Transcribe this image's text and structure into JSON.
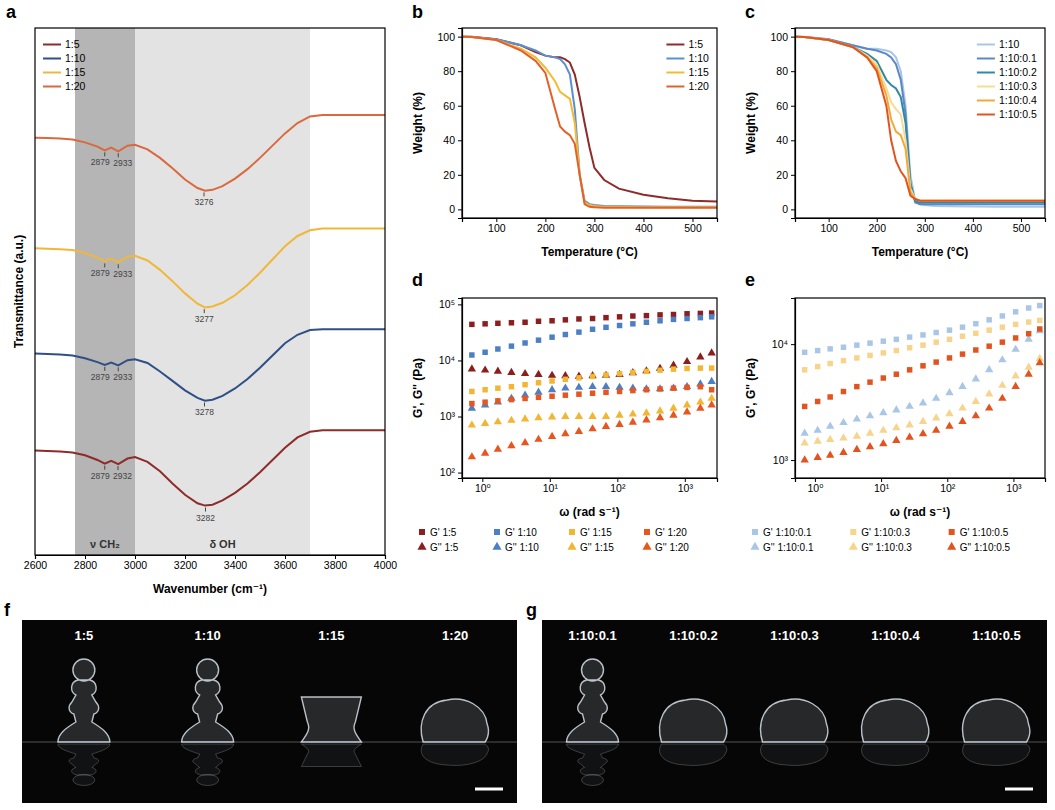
{
  "chart_data": [
    {
      "panel_label": "a",
      "type": "line",
      "x_label": "Wavenumber (cm⁻¹)",
      "y_label": "Transmittance (a.u.)",
      "x": [
        2600,
        2650,
        2700,
        2750,
        2800,
        2850,
        2879,
        2905,
        2933,
        2970,
        3000,
        3050,
        3100,
        3150,
        3200,
        3250,
        3280,
        3310,
        3350,
        3400,
        3450,
        3500,
        3550,
        3600,
        3650,
        3700,
        3750,
        3800,
        3900,
        4000
      ],
      "xlim": [
        2600,
        4000
      ],
      "xticks": [
        2600,
        2800,
        3000,
        3200,
        3400,
        3600,
        3800,
        4000
      ],
      "ylim": [
        -0.6,
        10.6
      ],
      "tick_labels": "x",
      "legend": "upper left",
      "bands": [
        {
          "x0": 2760,
          "x1": 3000,
          "label": "ν CH₂"
        },
        {
          "x0": 3000,
          "x1": 3700,
          "label": "δ OH"
        }
      ],
      "series": [
        {
          "name": "1:5",
          "color": "#8e2b2b",
          "peaks": [
            2879,
            2932,
            3282
          ],
          "values": [
            1.62,
            1.61,
            1.6,
            1.58,
            1.52,
            1.42,
            1.34,
            1.4,
            1.33,
            1.45,
            1.48,
            1.38,
            1.18,
            0.92,
            0.68,
            0.5,
            0.45,
            0.47,
            0.56,
            0.72,
            0.92,
            1.16,
            1.42,
            1.68,
            1.9,
            2.02,
            2.05,
            2.05,
            2.05,
            2.05
          ]
        },
        {
          "name": "1:10",
          "color": "#2f4f86",
          "peaks": [
            2879,
            2933,
            3278
          ],
          "values": [
            3.68,
            3.67,
            3.66,
            3.64,
            3.58,
            3.5,
            3.44,
            3.49,
            3.43,
            3.54,
            3.56,
            3.48,
            3.3,
            3.1,
            2.9,
            2.74,
            2.68,
            2.7,
            2.78,
            2.94,
            3.14,
            3.38,
            3.64,
            3.9,
            4.08,
            4.18,
            4.2,
            4.2,
            4.2,
            4.2
          ]
        },
        {
          "name": "1:15",
          "color": "#f0b73a",
          "peaks": [
            2879,
            2933,
            3277
          ],
          "values": [
            5.92,
            5.91,
            5.9,
            5.88,
            5.82,
            5.72,
            5.64,
            5.7,
            5.62,
            5.74,
            5.76,
            5.66,
            5.46,
            5.22,
            4.96,
            4.74,
            4.66,
            4.68,
            4.76,
            4.92,
            5.14,
            5.4,
            5.68,
            5.96,
            6.18,
            6.3,
            6.34,
            6.34,
            6.34,
            6.34
          ]
        },
        {
          "name": "1:20",
          "color": "#d9693e",
          "peaks": [
            2879,
            2933,
            3276
          ],
          "values": [
            8.27,
            8.26,
            8.25,
            8.23,
            8.17,
            8.08,
            8.0,
            8.06,
            7.98,
            8.1,
            8.12,
            8.02,
            7.84,
            7.62,
            7.38,
            7.2,
            7.14,
            7.16,
            7.24,
            7.4,
            7.6,
            7.84,
            8.1,
            8.36,
            8.58,
            8.72,
            8.75,
            8.75,
            8.75,
            8.75
          ]
        }
      ]
    },
    {
      "panel_label": "b",
      "type": "line",
      "x_label": "Temperature (°C)",
      "y_label": "Weight (%)",
      "x": [
        30,
        50,
        100,
        150,
        180,
        200,
        220,
        230,
        240,
        250,
        260,
        270,
        280,
        290,
        300,
        320,
        350,
        400,
        450,
        500,
        550
      ],
      "xlim": [
        30,
        550
      ],
      "xticks": [
        100,
        200,
        300,
        400,
        500
      ],
      "ylim": [
        -5,
        105
      ],
      "yticks": [
        0,
        20,
        40,
        60,
        80,
        100
      ],
      "legend": "upper right",
      "series": [
        {
          "name": "1:5",
          "color": "#8e2b2b",
          "values": [
            100,
            100,
            98.5,
            95,
            91,
            89,
            88,
            88,
            87,
            85,
            78,
            65,
            50,
            36,
            24,
            17,
            12,
            8.5,
            6.5,
            5,
            4.5
          ]
        },
        {
          "name": "1:10",
          "color": "#5b8fd0",
          "values": [
            100,
            99.8,
            98.5,
            95,
            92,
            89,
            88,
            87,
            84,
            78,
            58,
            20,
            5,
            3,
            2.5,
            2,
            1.8,
            1.6,
            1.5,
            1.5,
            1.5
          ]
        },
        {
          "name": "1:15",
          "color": "#f2bb35",
          "values": [
            100,
            99.8,
            98,
            93,
            88,
            82,
            74,
            68,
            66,
            64,
            50,
            20,
            4,
            2.5,
            2,
            1.5,
            1.3,
            1.2,
            1.2,
            1.2,
            1.2
          ]
        },
        {
          "name": "1:20",
          "color": "#e4602a",
          "values": [
            100,
            99.8,
            98,
            92,
            86,
            79,
            58,
            48,
            45,
            43,
            38,
            20,
            3,
            1.5,
            1.2,
            1.0,
            1.0,
            1.0,
            1.0,
            1.0,
            1.0
          ]
        }
      ]
    },
    {
      "panel_label": "c",
      "type": "line",
      "x_label": "Temperature (°C)",
      "y_label": "Weight (%)",
      "x": [
        30,
        50,
        100,
        150,
        180,
        200,
        220,
        230,
        240,
        250,
        260,
        270,
        280,
        290,
        300,
        320,
        350,
        400,
        450,
        500,
        550
      ],
      "xlim": [
        30,
        550
      ],
      "xticks": [
        100,
        200,
        300,
        400,
        500
      ],
      "ylim": [
        -5,
        105
      ],
      "yticks": [
        0,
        20,
        40,
        60,
        80,
        100
      ],
      "legend": "upper right",
      "series": [
        {
          "name": "1:10",
          "color": "#a9c6e6",
          "values": [
            100,
            99.8,
            98.5,
            95,
            93,
            93,
            92,
            91,
            88,
            80,
            60,
            20,
            5,
            3,
            2.5,
            2,
            1.8,
            1.6,
            1.5,
            1.5,
            1.5
          ]
        },
        {
          "name": "1:10:0.1",
          "color": "#5b88c7",
          "values": [
            100,
            99.8,
            98.5,
            95,
            93,
            92,
            90,
            88,
            84,
            75,
            55,
            15,
            4,
            3,
            3,
            3,
            3,
            3,
            3,
            3,
            3
          ]
        },
        {
          "name": "1:10:0.2",
          "color": "#2f8aa8",
          "values": [
            100,
            99.8,
            98,
            94,
            90,
            86,
            75,
            72,
            70,
            65,
            50,
            15,
            5,
            4,
            4,
            4,
            4,
            4,
            4,
            4,
            4
          ]
        },
        {
          "name": "1:10:0.3",
          "color": "#f6dc93",
          "values": [
            100,
            99.8,
            98,
            94,
            89,
            84,
            70,
            62,
            58,
            55,
            40,
            12,
            6,
            5,
            5,
            5,
            5,
            5,
            5,
            5,
            5
          ]
        },
        {
          "name": "1:10:0.4",
          "color": "#f2a93a",
          "values": [
            100,
            99.8,
            98,
            94,
            88,
            82,
            66,
            52,
            45,
            43,
            35,
            10,
            6,
            5,
            5,
            5,
            5,
            5,
            5,
            5,
            5
          ]
        },
        {
          "name": "1:10:0.5",
          "color": "#e2541f",
          "values": [
            100,
            99.8,
            98,
            94,
            88,
            80,
            60,
            40,
            28,
            22,
            18,
            8,
            6,
            5,
            5,
            5,
            5,
            5,
            5,
            5,
            5
          ]
        }
      ]
    },
    {
      "panel_label": "d",
      "type": "scatter",
      "log": true,
      "x_label": "ω (rad s⁻¹)",
      "y_label": "G', G'' (Pa)",
      "x": [
        0.7,
        1.1,
        1.7,
        2.7,
        4.3,
        6.8,
        10.8,
        17,
        27,
        43,
        68,
        108,
        170,
        270,
        430,
        680,
        1080,
        1700,
        2500
      ],
      "xlim": [
        0.5,
        3000
      ],
      "xticks": [
        {
          "value": 1,
          "label": "10⁰"
        },
        {
          "value": 10,
          "label": "10¹"
        },
        {
          "value": 100,
          "label": "10²"
        },
        {
          "value": 1000,
          "label": "10³"
        }
      ],
      "ylim": [
        80,
        130000
      ],
      "yticks": [
        {
          "value": 100,
          "label": "10²"
        },
        {
          "value": 1000,
          "label": "10³"
        },
        {
          "value": 10000,
          "label": "10⁴"
        },
        {
          "value": 100000,
          "label": "10⁵"
        }
      ],
      "legend": "bottom",
      "series": [
        {
          "name": "G' 1:5",
          "color": "#8b1f1f",
          "marker": "square",
          "values": [
            44000,
            45000,
            46000,
            47000,
            48000,
            50000,
            51000,
            53000,
            55000,
            56000,
            58000,
            60000,
            62000,
            63000,
            65000,
            66000,
            68000,
            69000,
            70000
          ]
        },
        {
          "name": "G'' 1:5",
          "color": "#8b1f1f",
          "marker": "triangle",
          "values": [
            7000,
            6700,
            6400,
            6100,
            5800,
            5600,
            5400,
            5300,
            5200,
            5300,
            5400,
            5600,
            6000,
            6500,
            7200,
            8200,
            9500,
            11500,
            13500
          ]
        },
        {
          "name": "G' 1:10",
          "color": "#4d7fc4",
          "marker": "square",
          "values": [
            12500,
            14000,
            16000,
            18000,
            20500,
            23000,
            26000,
            29000,
            32000,
            36000,
            39000,
            42000,
            45000,
            48000,
            51000,
            54000,
            56000,
            58000,
            60000
          ]
        },
        {
          "name": "G'' 1:10",
          "color": "#4d7fc4",
          "marker": "triangle",
          "values": [
            1400,
            1600,
            1800,
            2100,
            2400,
            2700,
            3000,
            3200,
            3300,
            3400,
            3400,
            3300,
            3200,
            3100,
            3100,
            3200,
            3400,
            3800,
            4200
          ]
        },
        {
          "name": "G' 1:15",
          "color": "#f2b633",
          "marker": "square",
          "values": [
            2800,
            3000,
            3200,
            3400,
            3700,
            4000,
            4300,
            4600,
            4900,
            5200,
            5500,
            5800,
            6100,
            6400,
            6700,
            7000,
            7200,
            7300,
            7300
          ]
        },
        {
          "name": "G'' 1:15",
          "color": "#f2b633",
          "marker": "triangle",
          "values": [
            700,
            750,
            800,
            850,
            900,
            950,
            980,
            1000,
            1000,
            1000,
            1000,
            1050,
            1100,
            1150,
            1250,
            1400,
            1600,
            1800,
            2100
          ]
        },
        {
          "name": "G' 1:20",
          "color": "#e7561f",
          "marker": "square",
          "values": [
            1700,
            1800,
            1900,
            2000,
            2100,
            2200,
            2300,
            2400,
            2500,
            2600,
            2700,
            2800,
            2900,
            3000,
            3100,
            3200,
            3300,
            3400,
            3000
          ]
        },
        {
          "name": "G'' 1:20",
          "color": "#e7561f",
          "marker": "triangle",
          "values": [
            190,
            220,
            260,
            300,
            340,
            390,
            440,
            490,
            540,
            600,
            660,
            720,
            790,
            860,
            950,
            1050,
            1200,
            1400,
            1600
          ]
        }
      ]
    },
    {
      "panel_label": "e",
      "type": "scatter",
      "log": true,
      "x_label": "ω (rad s⁻¹)",
      "y_label": "G', G'' (Pa)",
      "x": [
        0.7,
        1.1,
        1.7,
        2.7,
        4.3,
        6.8,
        10.8,
        17,
        27,
        43,
        68,
        108,
        170,
        270,
        430,
        680,
        1080,
        1700,
        2500
      ],
      "xlim": [
        0.5,
        3000
      ],
      "xticks": [
        {
          "value": 1,
          "label": "10⁰"
        },
        {
          "value": 10,
          "label": "10¹"
        },
        {
          "value": 100,
          "label": "10²"
        },
        {
          "value": 1000,
          "label": "10³"
        }
      ],
      "ylim": [
        700,
        25000
      ],
      "yticks": [
        {
          "value": 1000,
          "label": "10³"
        },
        {
          "value": 10000,
          "label": "10⁴"
        }
      ],
      "legend": "bottom",
      "series": [
        {
          "name": "G' 1:10:0.1",
          "color": "#a9c6e6",
          "marker": "square",
          "values": [
            8500,
            8800,
            9100,
            9400,
            9800,
            10200,
            10600,
            11000,
            11500,
            12000,
            12600,
            13200,
            14000,
            15000,
            16200,
            17500,
            19000,
            20500,
            21500
          ]
        },
        {
          "name": "G'' 1:10:0.1",
          "color": "#a9c6e6",
          "marker": "triangle",
          "values": [
            1700,
            1800,
            1950,
            2100,
            2250,
            2400,
            2550,
            2700,
            2900,
            3100,
            3400,
            3800,
            4300,
            5000,
            6000,
            7300,
            9000,
            11000,
            13000
          ]
        },
        {
          "name": "G' 1:10:0.3",
          "color": "#f6d48c",
          "marker": "square",
          "values": [
            6000,
            6400,
            6800,
            7200,
            7600,
            8000,
            8400,
            8800,
            9300,
            9800,
            10400,
            11000,
            11700,
            12400,
            13200,
            14000,
            14800,
            15500,
            16000
          ]
        },
        {
          "name": "G'' 1:10:0.3",
          "color": "#f6d48c",
          "marker": "triangle",
          "values": [
            1400,
            1450,
            1500,
            1550,
            1600,
            1700,
            1800,
            1900,
            2000,
            2150,
            2300,
            2500,
            2800,
            3200,
            3700,
            4400,
            5300,
            6300,
            7500
          ]
        },
        {
          "name": "G' 1:10:0.5",
          "color": "#e2541f",
          "marker": "square",
          "values": [
            2900,
            3200,
            3500,
            3900,
            4300,
            4700,
            5100,
            5500,
            6000,
            6500,
            7000,
            7600,
            8200,
            8900,
            9600,
            10400,
            11300,
            12300,
            13500
          ]
        },
        {
          "name": "G'' 1:10:0.5",
          "color": "#e2541f",
          "marker": "triangle",
          "values": [
            1000,
            1050,
            1100,
            1160,
            1230,
            1300,
            1380,
            1470,
            1570,
            1680,
            1800,
            1950,
            2150,
            2400,
            2800,
            3400,
            4300,
            5500,
            6900
          ]
        }
      ]
    },
    {
      "panel_label": "f",
      "type": "photo",
      "labels": [
        "1:5",
        "1:10",
        "1:15",
        "1:20"
      ]
    },
    {
      "panel_label": "g",
      "type": "photo",
      "labels": [
        "1:10:0.1",
        "1:10:0.2",
        "1:10:0.3",
        "1:10:0.4",
        "1:10:0.5"
      ]
    }
  ]
}
